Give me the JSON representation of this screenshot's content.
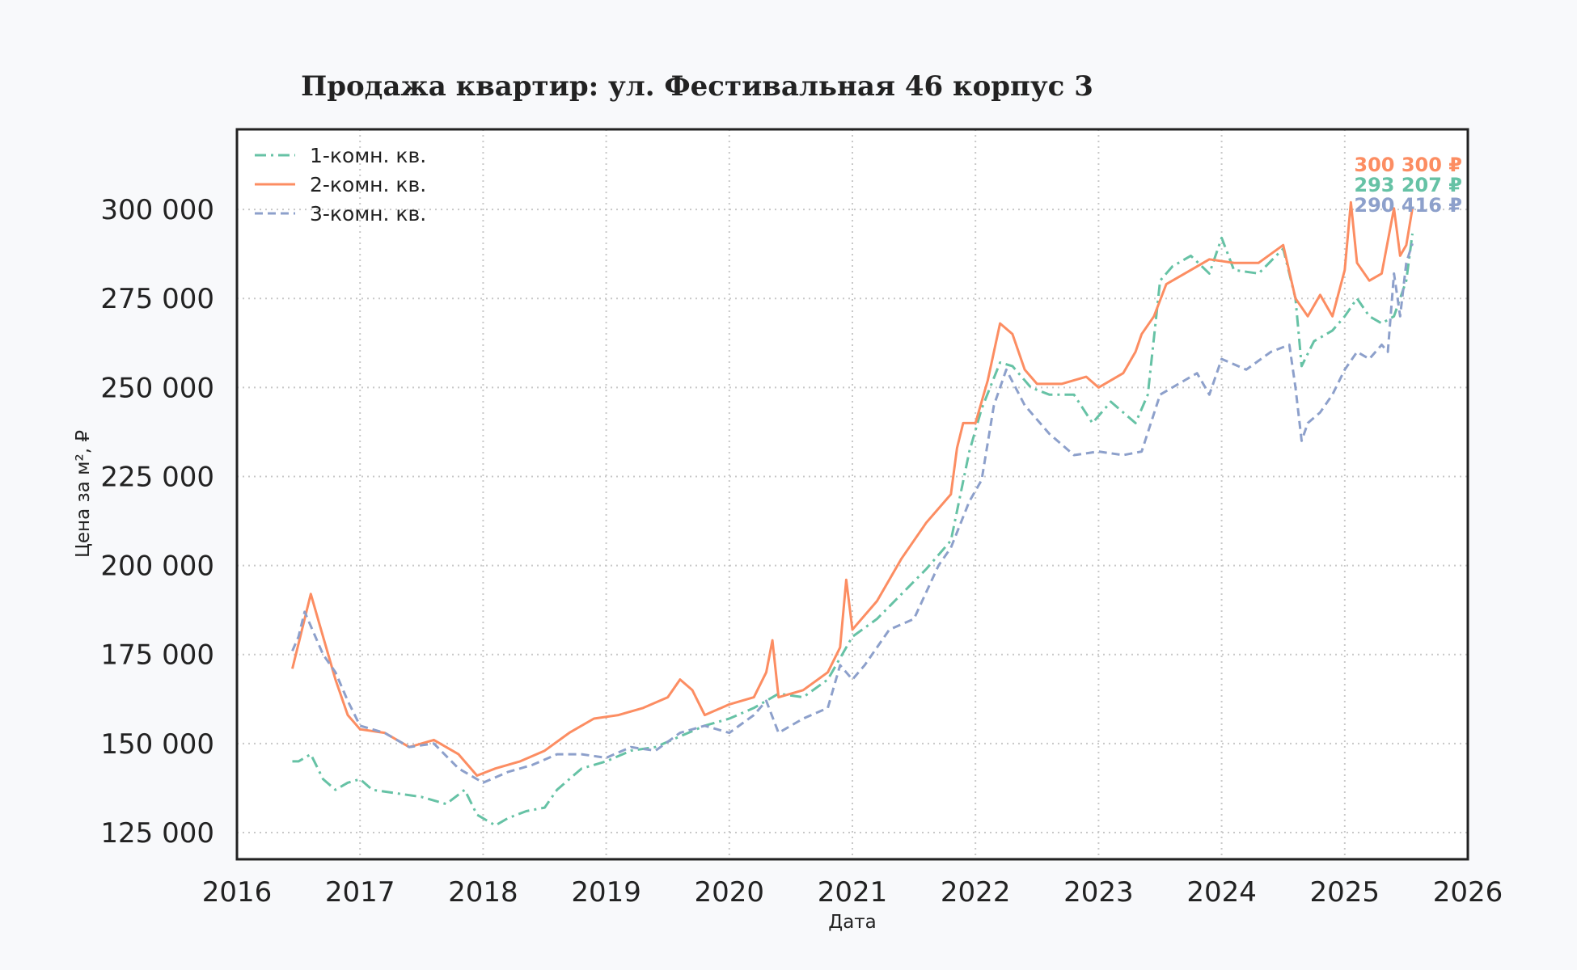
{
  "colors": {
    "s1": "#66c2a5",
    "s2": "#fc8d62",
    "s3": "#8da0cb",
    "grid": "#c8c8c8",
    "frame": "#222222",
    "background": "#f8f9fb",
    "plot_background": "#ffffff"
  },
  "chart_data": {
    "type": "line",
    "title": "Продажа квартир: ул. Фестивальная 46 корпус 3",
    "xlabel": "Дата",
    "ylabel": "Цена за м², ₽",
    "xlim": [
      2016.0,
      2026.0
    ],
    "ylim": [
      117500,
      322500
    ],
    "xticks": [
      2016,
      2017,
      2018,
      2019,
      2020,
      2021,
      2022,
      2023,
      2024,
      2025,
      2026
    ],
    "xtick_labels": [
      "2016",
      "2017",
      "2018",
      "2019",
      "2020",
      "2021",
      "2022",
      "2023",
      "2024",
      "2025",
      "2026"
    ],
    "yticks": [
      125000,
      150000,
      175000,
      200000,
      225000,
      250000,
      275000,
      300000
    ],
    "ytick_labels": [
      "125 000",
      "150 000",
      "175 000",
      "200 000",
      "225 000",
      "250 000",
      "275 000",
      "300 000"
    ],
    "grid": true,
    "legend_position": "top-left",
    "series": [
      {
        "name": "1-комн. кв.",
        "color": "#66c2a5",
        "dash": "dashdot",
        "end_label": "293 207 ₽",
        "x": [
          2016.45,
          2016.5,
          2016.6,
          2016.7,
          2016.8,
          2016.9,
          2017.0,
          2017.1,
          2017.3,
          2017.5,
          2017.7,
          2017.85,
          2017.95,
          2018.1,
          2018.2,
          2018.35,
          2018.5,
          2018.6,
          2018.8,
          2019.0,
          2019.2,
          2019.4,
          2019.6,
          2019.8,
          2020.0,
          2020.2,
          2020.4,
          2020.6,
          2020.8,
          2021.0,
          2021.2,
          2021.4,
          2021.6,
          2021.8,
          2021.95,
          2022.05,
          2022.2,
          2022.3,
          2022.45,
          2022.6,
          2022.8,
          2022.95,
          2023.1,
          2023.3,
          2023.4,
          2023.5,
          2023.6,
          2023.75,
          2023.9,
          2024.0,
          2024.1,
          2024.3,
          2024.5,
          2024.6,
          2024.65,
          2024.75,
          2024.9,
          2025.0,
          2025.1,
          2025.2,
          2025.3,
          2025.4,
          2025.5,
          2025.55
        ],
        "y": [
          145000,
          145000,
          147000,
          140000,
          137000,
          139000,
          140000,
          137000,
          136000,
          135000,
          133000,
          137000,
          130000,
          127000,
          129000,
          131000,
          132000,
          137000,
          143000,
          145000,
          148000,
          149000,
          152000,
          155000,
          157000,
          160000,
          164000,
          163000,
          168000,
          180000,
          185000,
          192000,
          199000,
          207000,
          232000,
          244000,
          257000,
          256000,
          250000,
          248000,
          248000,
          240000,
          246000,
          240000,
          248000,
          280000,
          284000,
          287000,
          282000,
          292000,
          283000,
          282000,
          289000,
          275000,
          256000,
          263000,
          266000,
          270000,
          275000,
          270000,
          268000,
          270000,
          280000,
          293207
        ]
      },
      {
        "name": "2-комн. кв.",
        "color": "#fc8d62",
        "dash": "solid",
        "end_label": "300 300 ₽",
        "x": [
          2016.45,
          2016.5,
          2016.55,
          2016.6,
          2016.7,
          2016.8,
          2016.9,
          2017.0,
          2017.2,
          2017.4,
          2017.6,
          2017.8,
          2017.95,
          2018.1,
          2018.3,
          2018.5,
          2018.7,
          2018.9,
          2019.1,
          2019.3,
          2019.5,
          2019.6,
          2019.7,
          2019.8,
          2020.0,
          2020.2,
          2020.3,
          2020.35,
          2020.4,
          2020.6,
          2020.8,
          2020.9,
          2020.95,
          2021.0,
          2021.2,
          2021.4,
          2021.6,
          2021.8,
          2021.85,
          2021.9,
          2022.0,
          2022.1,
          2022.2,
          2022.3,
          2022.4,
          2022.5,
          2022.7,
          2022.9,
          2023.0,
          2023.2,
          2023.3,
          2023.35,
          2023.45,
          2023.55,
          2023.7,
          2023.9,
          2024.1,
          2024.3,
          2024.5,
          2024.6,
          2024.7,
          2024.8,
          2024.9,
          2025.0,
          2025.05,
          2025.1,
          2025.2,
          2025.3,
          2025.4,
          2025.45,
          2025.5,
          2025.55
        ],
        "y": [
          171000,
          178000,
          185000,
          192000,
          180000,
          168000,
          158000,
          154000,
          153000,
          149000,
          151000,
          147000,
          141000,
          143000,
          145000,
          148000,
          153000,
          157000,
          158000,
          160000,
          163000,
          168000,
          165000,
          158000,
          161000,
          163000,
          170000,
          179000,
          163000,
          165000,
          170000,
          177000,
          196000,
          182000,
          190000,
          202000,
          212000,
          220000,
          233000,
          240000,
          240000,
          252000,
          268000,
          265000,
          255000,
          251000,
          251000,
          253000,
          250000,
          254000,
          260000,
          265000,
          270000,
          279000,
          282000,
          286000,
          285000,
          285000,
          290000,
          275000,
          270000,
          276000,
          270000,
          283000,
          302000,
          285000,
          280000,
          282000,
          300300,
          287000,
          290000,
          300300
        ]
      },
      {
        "name": "3-комн. кв.",
        "color": "#8da0cb",
        "dash": "dashed",
        "end_label": "290 416 ₽",
        "x": [
          2016.45,
          2016.5,
          2016.55,
          2016.6,
          2016.7,
          2016.8,
          2016.9,
          2017.0,
          2017.2,
          2017.4,
          2017.6,
          2017.8,
          2018.0,
          2018.2,
          2018.4,
          2018.6,
          2018.8,
          2019.0,
          2019.2,
          2019.4,
          2019.6,
          2019.8,
          2020.0,
          2020.2,
          2020.3,
          2020.4,
          2020.5,
          2020.6,
          2020.8,
          2020.9,
          2021.0,
          2021.1,
          2021.3,
          2021.5,
          2021.7,
          2021.8,
          2021.95,
          2022.05,
          2022.15,
          2022.25,
          2022.4,
          2022.6,
          2022.8,
          2023.0,
          2023.2,
          2023.35,
          2023.5,
          2023.7,
          2023.8,
          2023.9,
          2024.0,
          2024.2,
          2024.4,
          2024.55,
          2024.6,
          2024.65,
          2024.7,
          2024.8,
          2024.9,
          2025.0,
          2025.1,
          2025.2,
          2025.3,
          2025.35,
          2025.4,
          2025.45,
          2025.5,
          2025.55
        ],
        "y": [
          176000,
          180000,
          187000,
          183000,
          175000,
          170000,
          162000,
          155000,
          153000,
          149000,
          150000,
          143000,
          139000,
          142000,
          144000,
          147000,
          147000,
          146000,
          149000,
          148000,
          153000,
          155000,
          153000,
          158000,
          162000,
          153000,
          155000,
          157000,
          160000,
          172000,
          168000,
          172000,
          182000,
          185000,
          200000,
          205000,
          218000,
          224000,
          245000,
          255000,
          245000,
          237000,
          231000,
          232000,
          231000,
          232000,
          248000,
          252000,
          254000,
          248000,
          258000,
          255000,
          260000,
          262000,
          250000,
          235000,
          240000,
          243000,
          248000,
          255000,
          260000,
          258000,
          262000,
          260000,
          282000,
          270000,
          285000,
          290416
        ]
      }
    ]
  }
}
